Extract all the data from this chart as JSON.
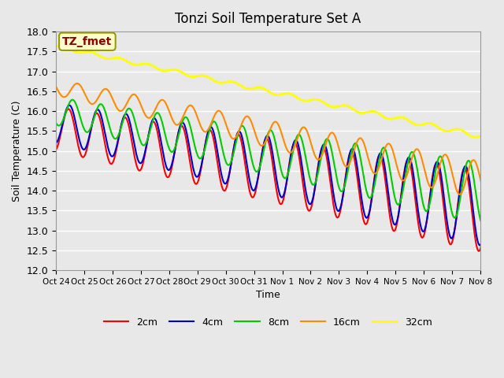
{
  "title": "Tonzi Soil Temperature Set A",
  "ylabel": "Soil Temperature (C)",
  "xlabel": "Time",
  "annotation": "TZ_fmet",
  "annotation_color": "#8B0000",
  "annotation_bg": "#FFFFCC",
  "annotation_edge": "#999900",
  "ylim": [
    12.0,
    18.0
  ],
  "yticks": [
    12.0,
    12.5,
    13.0,
    13.5,
    14.0,
    14.5,
    15.0,
    15.5,
    16.0,
    16.5,
    17.0,
    17.5,
    18.0
  ],
  "xtick_labels": [
    "Oct 24",
    "Oct 25",
    "Oct 26",
    "Oct 27",
    "Oct 28",
    "Oct 29",
    "Oct 30",
    "Oct 31",
    "Nov 1",
    "Nov 2",
    "Nov 3",
    "Nov 4",
    "Nov 5",
    "Nov 6",
    "Nov 7",
    "Nov 8"
  ],
  "bg_color": "#E8E8E8",
  "legend_entries": [
    "2cm",
    "4cm",
    "8cm",
    "16cm",
    "32cm"
  ],
  "legend_colors": [
    "#FF0000",
    "#0000CC",
    "#00CC00",
    "#FF8C00",
    "#FFFF00"
  ],
  "legend_lws": [
    1.5,
    1.5,
    1.5,
    1.5,
    2.0
  ],
  "n_days": 16,
  "pts_per_day": 48
}
